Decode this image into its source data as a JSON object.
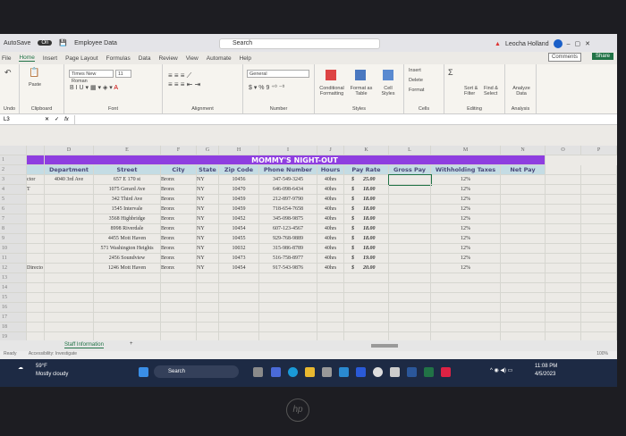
{
  "titlebar": {
    "autosave": "AutoSave",
    "autosave_state": "On",
    "doc": "Employee Data",
    "search": "Search",
    "user": "Leocha Holland"
  },
  "tabs": [
    "File",
    "Home",
    "Insert",
    "Page Layout",
    "Formulas",
    "Data",
    "Review",
    "View",
    "Automate",
    "Help"
  ],
  "comments": "Comments",
  "share": "Share",
  "ribbon": {
    "groups": [
      "Undo",
      "Clipboard",
      "Font",
      "Alignment",
      "Number",
      "Styles",
      "Cells",
      "Editing",
      "Analysis"
    ],
    "paste": "Paste",
    "font": "Times New Roman",
    "size": "11",
    "number_format": "General",
    "conditional": "Conditional Formatting",
    "format_table": "Format as Table",
    "cell_styles": "Cell Styles",
    "insert": "Insert",
    "delete": "Delete",
    "format": "Format",
    "sort": "Sort & Filter",
    "find": "Find & Select",
    "analyze": "Analyze Data"
  },
  "formula_bar": {
    "name_box": "L3",
    "fx": "fx"
  },
  "columns": [
    "D",
    "E",
    "F",
    "G",
    "H",
    "I",
    "J",
    "K",
    "L",
    "M",
    "N",
    "O",
    "P"
  ],
  "sheet_title": "MOMMY'S NIGHT-OUT",
  "headers": [
    "Department",
    "Street",
    "City",
    "State",
    "Zip Code",
    "Phone Number",
    "Hours",
    "Pay Rate",
    "Gross Pay",
    "Withholding Taxes",
    "Net Pay"
  ],
  "rows": [
    {
      "pre": "ctor",
      "dept": "4040 3rd Ave",
      "street": "657 E 170 st",
      "city": "Bronx",
      "state": "NY",
      "zip": "10456",
      "phone": "347-549-3245",
      "hours": "40hrs",
      "rate": "25.00",
      "tax": "12%"
    },
    {
      "pre": "T",
      "dept": "",
      "street": "1075 Gerard Ave",
      "city": "Bronx",
      "state": "NY",
      "zip": "10470",
      "phone": "646-098-6434",
      "hours": "40hrs",
      "rate": "18.00",
      "tax": "12%"
    },
    {
      "pre": "",
      "dept": "",
      "street": "342 Third Ave",
      "city": "Bronx",
      "state": "NY",
      "zip": "10459",
      "phone": "212-897-9790",
      "hours": "40hrs",
      "rate": "18.00",
      "tax": "12%"
    },
    {
      "pre": "",
      "dept": "",
      "street": "1545 Intervale",
      "city": "Bronx",
      "state": "NY",
      "zip": "10459",
      "phone": "718-654-7658",
      "hours": "40hrs",
      "rate": "18.00",
      "tax": "12%"
    },
    {
      "pre": "",
      "dept": "",
      "street": "3568 Highbridge",
      "city": "Bronx",
      "state": "NY",
      "zip": "10452",
      "phone": "345-098-9875",
      "hours": "40hrs",
      "rate": "18.00",
      "tax": "12%"
    },
    {
      "pre": "",
      "dept": "",
      "street": "8998 Riverdale",
      "city": "Bronx",
      "state": "NY",
      "zip": "10454",
      "phone": "607-123-4567",
      "hours": "40hrs",
      "rate": "18.00",
      "tax": "12%"
    },
    {
      "pre": "",
      "dept": "",
      "street": "4455 Mott Haven",
      "city": "Bronx",
      "state": "NY",
      "zip": "10455",
      "phone": "929-768-9889",
      "hours": "40hrs",
      "rate": "18.00",
      "tax": "12%"
    },
    {
      "pre": "",
      "dept": "",
      "street": "571 Washington Heights",
      "city": "Bronx",
      "state": "NY",
      "zip": "10032",
      "phone": "315-986-8789",
      "hours": "40hrs",
      "rate": "18.00",
      "tax": "12%"
    },
    {
      "pre": "",
      "dept": "",
      "street": "2456 Soundview",
      "city": "Bronx",
      "state": "NY",
      "zip": "10473",
      "phone": "516-758-8977",
      "hours": "40hrs",
      "rate": "19.00",
      "tax": "12%"
    },
    {
      "pre": "Directo",
      "dept": "",
      "street": "1246 Mott Haven",
      "city": "Bronx",
      "state": "NY",
      "zip": "10454",
      "phone": "917-543-9876",
      "hours": "40hrs",
      "rate": "20.00",
      "tax": "12%"
    }
  ],
  "currency": "$",
  "sheet_tab": "Staff Information",
  "status": {
    "ready": "Ready",
    "accessibility": "Accessibility: Investigate",
    "zoom": "100%"
  },
  "taskbar": {
    "temp": "59°F",
    "weather": "Mostly cloudy",
    "search": "Search",
    "time": "11:08 PM",
    "date": "4/5/2023"
  }
}
